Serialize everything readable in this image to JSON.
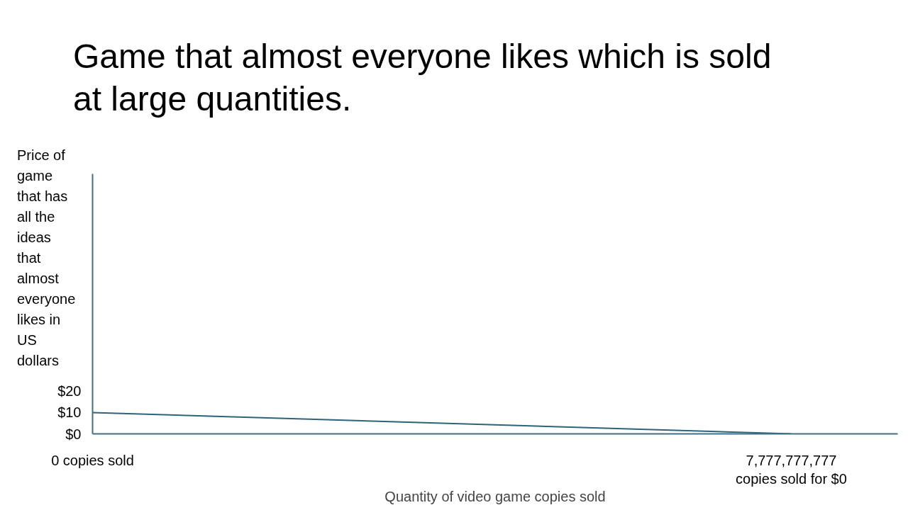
{
  "chart_data": {
    "type": "line",
    "title": "Game that almost everyone likes which is sold at large quantities.",
    "xlabel": "Quantity of video game copies sold",
    "ylabel": "Price of game that has all the ideas that almost everyone likes in US dollars",
    "categories": [
      "0 copies sold",
      "7,777,777,777\ncopies sold for $0"
    ],
    "series": [
      {
        "color": "#2e6379",
        "values": [
          10,
          0
        ]
      }
    ],
    "ylim": [
      0,
      122
    ],
    "yticks": [
      {
        "value": 0,
        "label": "$0"
      },
      {
        "value": 10,
        "label": "$10"
      },
      {
        "value": 20,
        "label": "$20"
      }
    ],
    "grid": false,
    "marker": "none",
    "line_style": "solid"
  }
}
